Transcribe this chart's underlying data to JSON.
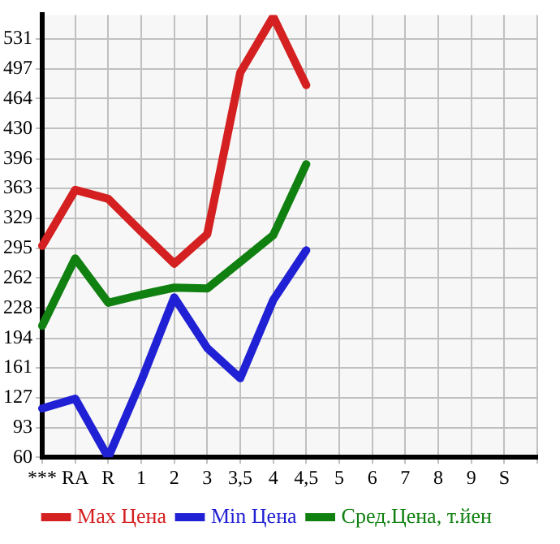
{
  "chart_data": {
    "type": "line",
    "categories": [
      "***",
      "RA",
      "R",
      "1",
      "2",
      "3",
      "3,5",
      "4",
      "4,5",
      "5",
      "6",
      "7",
      "8",
      "9",
      "S",
      null
    ],
    "series": [
      {
        "name": "Max Цена",
        "color": "#d42020",
        "values": [
          298,
          361,
          351,
          314,
          278,
          311,
          493,
          556,
          479,
          null,
          null,
          null,
          null,
          null,
          null,
          null
        ]
      },
      {
        "name": "Min Цена",
        "color": "#2020d4",
        "values": [
          115,
          126,
          60,
          146,
          240,
          183,
          149,
          237,
          293,
          null,
          null,
          null,
          null,
          null,
          null,
          null
        ]
      },
      {
        "name": "Сред.Цена, т.йен",
        "color": "#108010",
        "values": [
          208,
          284,
          234,
          243,
          251,
          250,
          280,
          310,
          390,
          null,
          null,
          null,
          null,
          null,
          null,
          null
        ]
      }
    ],
    "ylim": [
      60,
      558
    ],
    "yticks": [
      60,
      93,
      127,
      161,
      194,
      228,
      262,
      295,
      329,
      363,
      396,
      430,
      464,
      497,
      531
    ],
    "grid": true,
    "legend": "bottom",
    "marker": "none",
    "line_style": "solid"
  }
}
